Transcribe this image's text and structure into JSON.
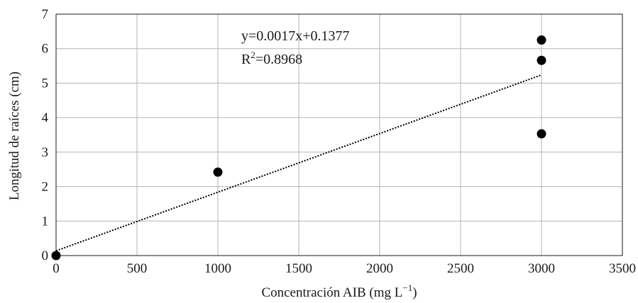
{
  "chart_data": {
    "type": "scatter",
    "title": "",
    "xlabel": "Concentración AIB (mg L",
    "xlabel_sup": "−1",
    "xlabel_end": ")",
    "ylabel": "Longitud de raíces (cm)",
    "xlim": [
      0,
      3500
    ],
    "ylim": [
      0,
      7
    ],
    "x_ticks": [
      "0",
      "500",
      "1000",
      "1500",
      "2000",
      "2500",
      "3000",
      "3500"
    ],
    "y_ticks": [
      "0",
      "1",
      "2",
      "3",
      "4",
      "5",
      "6",
      "7"
    ],
    "grid": true,
    "colors": {
      "points": "#000000",
      "grid": "#b3b3b3",
      "trendline": "#000000"
    },
    "series": [
      {
        "points": [
          {
            "x": 0,
            "y": 0
          },
          {
            "x": 1000,
            "y": 2.42
          },
          {
            "x": 3000,
            "y": 3.53
          },
          {
            "x": 3000,
            "y": 5.66
          },
          {
            "x": 3000,
            "y": 6.25
          }
        ]
      }
    ],
    "trendline": {
      "style": "dotted",
      "slope": 0.0017,
      "intercept": 0.1377,
      "x_range": [
        0,
        3000
      ],
      "equation": "y=0.0017x+0.1377",
      "r2_prefix": "R",
      "r2_sup": "2",
      "r2_value": "=0.8968"
    }
  }
}
